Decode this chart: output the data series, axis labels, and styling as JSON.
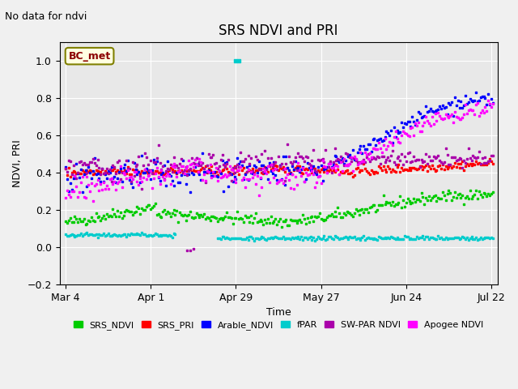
{
  "title": "SRS NDVI and PRI",
  "top_left_text": "No data for ndvi",
  "annotation_box": "BC_met",
  "xlabel": "Time",
  "ylabel": "NDVI, PRI",
  "ylim": [
    -0.2,
    1.1
  ],
  "xlim_days": [
    0,
    140
  ],
  "yticks": [
    -0.2,
    0.0,
    0.2,
    0.4,
    0.6,
    0.8,
    1.0
  ],
  "xtick_labels": [
    "Mar 4",
    "Apr 1",
    "Apr 29",
    "May 27",
    "Jun 24",
    "Jul 22"
  ],
  "xtick_positions": [
    0,
    28,
    56,
    84,
    112,
    140
  ],
  "background_color": "#e8e8e8",
  "axes_facecolor": "#e8e8e8",
  "figure_facecolor": "#f0f0f0",
  "legend_entries": [
    "SRS_NDVI",
    "SRS_PRI",
    "Arable_NDVI",
    "fPAR",
    "SW-PAR NDVI",
    "Apogee NDVI"
  ],
  "legend_colors": [
    "#00cc00",
    "#ff0000",
    "#0000ff",
    "#00cccc",
    "#aa00aa",
    "#ff00ff"
  ],
  "marker": "s",
  "markersize": 2
}
